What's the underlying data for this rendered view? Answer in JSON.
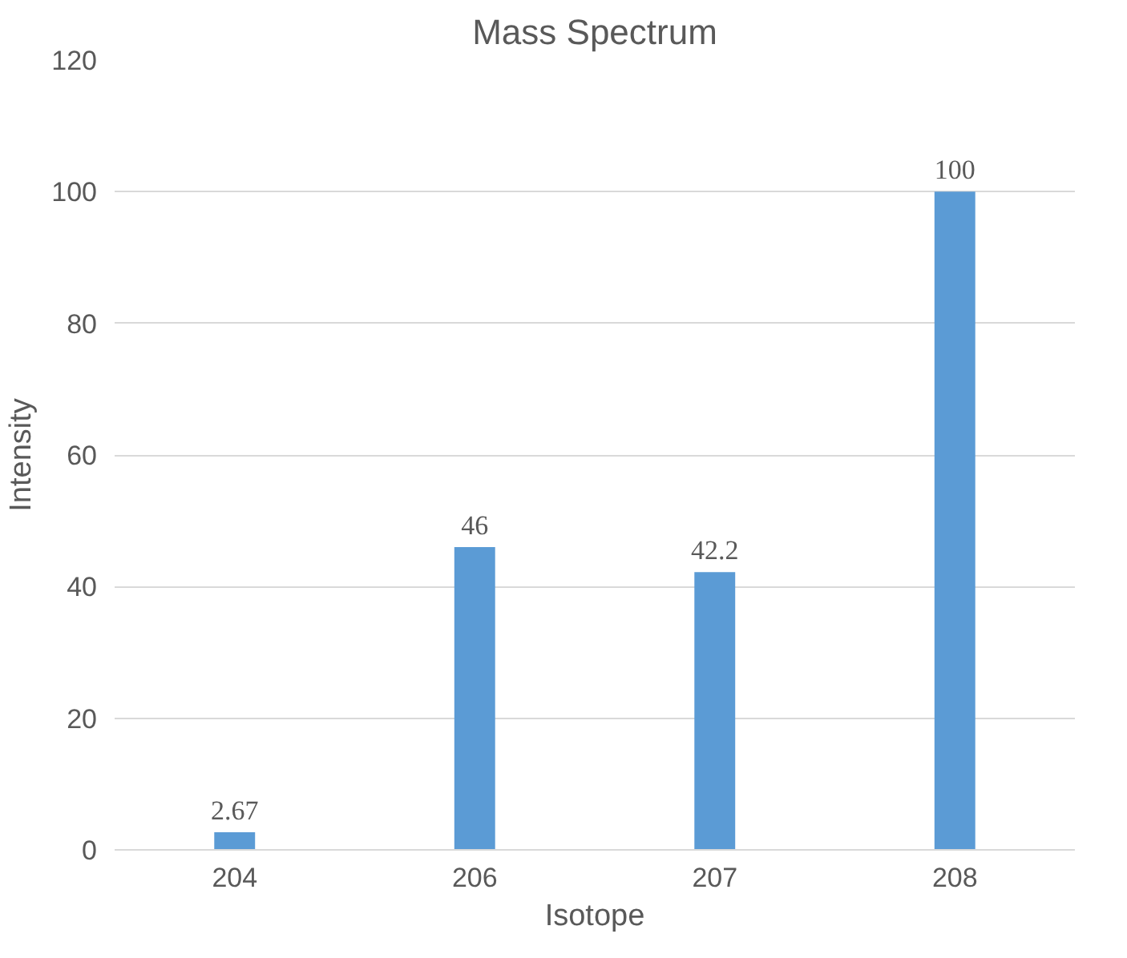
{
  "chart_data": {
    "type": "bar",
    "title": "Mass Spectrum",
    "xlabel": "Isotope",
    "ylabel": "Intensity",
    "categories": [
      "204",
      "206",
      "207",
      "208"
    ],
    "values": [
      2.67,
      46,
      42.2,
      100
    ],
    "color": "#5b9bd5",
    "ylim": [
      0,
      120
    ],
    "yticks": [
      0,
      20,
      40,
      60,
      80,
      100,
      120
    ],
    "grid": "y",
    "data_labels": true
  }
}
